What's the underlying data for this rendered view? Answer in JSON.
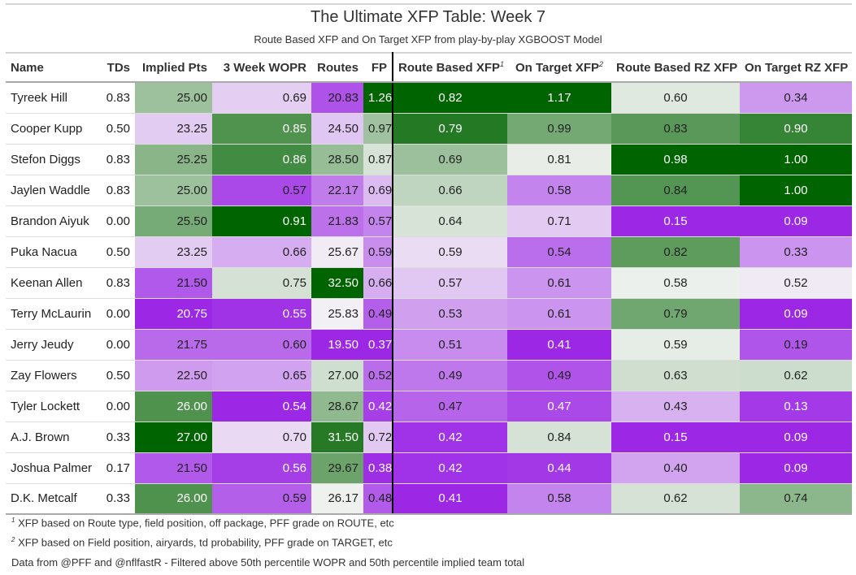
{
  "title": "The Ultimate XFP Table: Week 7",
  "subtitle": "Route Based XFP and On Target XFP from play-by-play XGBOOST Model",
  "footnotes": {
    "mark1": "1",
    "text1": "XFP based on Route type, field position, off package, PFF grade on ROUTE, etc",
    "mark2": "2",
    "text2": "XFP based on Field position, airyards, td probability, PFF grade on TARGET, etc",
    "source": "Data from @PFF and @nflfastR - Filtered above 50th percentile WOPR and 50th percentile implied team total"
  },
  "colors": {
    "low": "#9c28e6",
    "mid": "#f5f5f5",
    "high": "#006400",
    "separator": "#000000"
  },
  "chart_data": {
    "type": "table",
    "columns": [
      {
        "label": "Name",
        "mark": "",
        "domain": null
      },
      {
        "label": "TDs",
        "mark": "",
        "domain": null
      },
      {
        "label": "Implied Pts",
        "mark": "",
        "domain": [
          20.75,
          27.0
        ]
      },
      {
        "label": "3 Week WOPR",
        "mark": "",
        "domain": [
          0.54,
          0.91
        ]
      },
      {
        "label": "Routes",
        "mark": "",
        "domain": [
          19.5,
          32.5
        ]
      },
      {
        "label": "FP",
        "mark": "",
        "domain": [
          0.37,
          1.26
        ]
      },
      {
        "label": "Route Based XFP",
        "mark": "1",
        "domain": [
          0.41,
          0.82
        ]
      },
      {
        "label": "On Target XFP",
        "mark": "2",
        "domain": [
          0.41,
          1.17
        ]
      },
      {
        "label": "Route Based RZ XFP",
        "mark": "",
        "domain": [
          0.15,
          0.98
        ]
      },
      {
        "label": "On Target RZ XFP",
        "mark": "",
        "domain": [
          0.09,
          1.0
        ]
      }
    ],
    "rows": [
      [
        "Tyreek Hill",
        "0.83",
        "25.00",
        "0.69",
        "20.83",
        "1.26",
        "0.82",
        "1.17",
        "0.60",
        "0.34"
      ],
      [
        "Cooper Kupp",
        "0.50",
        "23.25",
        "0.85",
        "24.50",
        "0.97",
        "0.79",
        "0.99",
        "0.83",
        "0.90"
      ],
      [
        "Stefon Diggs",
        "0.83",
        "25.25",
        "0.86",
        "28.50",
        "0.87",
        "0.69",
        "0.81",
        "0.98",
        "1.00"
      ],
      [
        "Jaylen Waddle",
        "0.83",
        "25.00",
        "0.57",
        "22.17",
        "0.69",
        "0.66",
        "0.58",
        "0.84",
        "1.00"
      ],
      [
        "Brandon Aiyuk",
        "0.00",
        "25.50",
        "0.91",
        "21.83",
        "0.57",
        "0.64",
        "0.71",
        "0.15",
        "0.09"
      ],
      [
        "Puka Nacua",
        "0.50",
        "23.25",
        "0.66",
        "25.67",
        "0.59",
        "0.59",
        "0.54",
        "0.82",
        "0.33"
      ],
      [
        "Keenan Allen",
        "0.83",
        "21.50",
        "0.75",
        "32.50",
        "0.66",
        "0.57",
        "0.61",
        "0.58",
        "0.52"
      ],
      [
        "Terry McLaurin",
        "0.00",
        "20.75",
        "0.55",
        "25.83",
        "0.49",
        "0.53",
        "0.61",
        "0.79",
        "0.09"
      ],
      [
        "Jerry Jeudy",
        "0.00",
        "21.75",
        "0.60",
        "19.50",
        "0.37",
        "0.51",
        "0.41",
        "0.59",
        "0.19"
      ],
      [
        "Zay Flowers",
        "0.50",
        "22.50",
        "0.65",
        "27.00",
        "0.52",
        "0.49",
        "0.49",
        "0.63",
        "0.62"
      ],
      [
        "Tyler Lockett",
        "0.00",
        "26.00",
        "0.54",
        "28.67",
        "0.42",
        "0.47",
        "0.47",
        "0.43",
        "0.13"
      ],
      [
        "A.J. Brown",
        "0.33",
        "27.00",
        "0.70",
        "31.50",
        "0.72",
        "0.42",
        "0.84",
        "0.15",
        "0.09"
      ],
      [
        "Joshua Palmer",
        "0.17",
        "21.50",
        "0.56",
        "29.67",
        "0.38",
        "0.42",
        "0.44",
        "0.40",
        "0.09"
      ],
      [
        "D.K. Metcalf",
        "0.33",
        "26.00",
        "0.59",
        "26.17",
        "0.48",
        "0.41",
        "0.58",
        "0.62",
        "0.74"
      ]
    ]
  }
}
